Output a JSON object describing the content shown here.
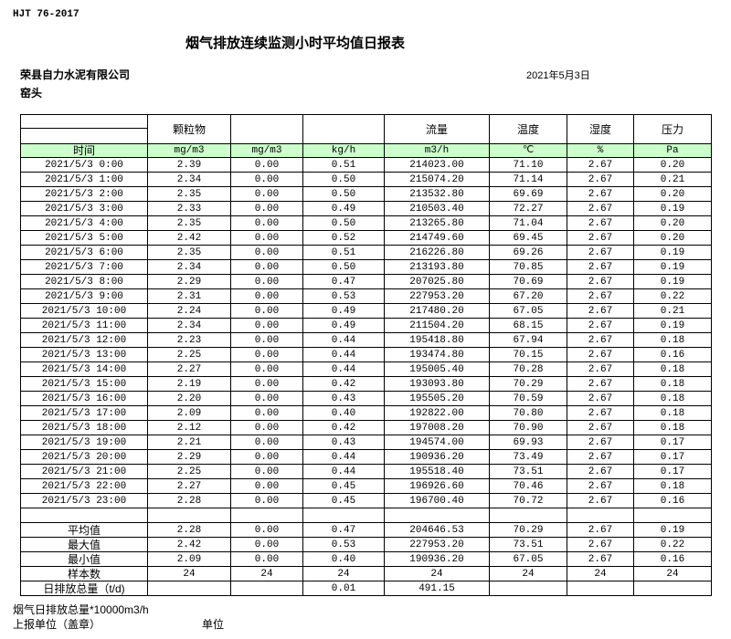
{
  "header": {
    "standard": "HJT  76-2017",
    "title": "烟气排放连续监测小时平均值日报表",
    "company": "荣县自力水泥有限公司",
    "date": "2021年5月3日",
    "unit": "窑头"
  },
  "columns": [
    "",
    "颗粒物",
    "",
    "",
    "流量",
    "温度",
    "湿度",
    "压力"
  ],
  "units": [
    "时间",
    "mg/m3",
    "mg/m3",
    "kg/h",
    "m3/h",
    "℃",
    "%",
    "Pa"
  ],
  "rows": [
    [
      "2021/5/3 0:00",
      "2.39",
      "0.00",
      "0.51",
      "214023.00",
      "71.10",
      "2.67",
      "0.20"
    ],
    [
      "2021/5/3 1:00",
      "2.34",
      "0.00",
      "0.50",
      "215074.20",
      "71.14",
      "2.67",
      "0.21"
    ],
    [
      "2021/5/3 2:00",
      "2.35",
      "0.00",
      "0.50",
      "213532.80",
      "69.69",
      "2.67",
      "0.20"
    ],
    [
      "2021/5/3 3:00",
      "2.33",
      "0.00",
      "0.49",
      "210503.40",
      "72.27",
      "2.67",
      "0.19"
    ],
    [
      "2021/5/3 4:00",
      "2.35",
      "0.00",
      "0.50",
      "213265.80",
      "71.04",
      "2.67",
      "0.20"
    ],
    [
      "2021/5/3 5:00",
      "2.42",
      "0.00",
      "0.52",
      "214749.60",
      "69.45",
      "2.67",
      "0.20"
    ],
    [
      "2021/5/3 6:00",
      "2.35",
      "0.00",
      "0.51",
      "216226.80",
      "69.26",
      "2.67",
      "0.19"
    ],
    [
      "2021/5/3 7:00",
      "2.34",
      "0.00",
      "0.50",
      "213193.80",
      "70.85",
      "2.67",
      "0.19"
    ],
    [
      "2021/5/3 8:00",
      "2.29",
      "0.00",
      "0.47",
      "207025.80",
      "70.69",
      "2.67",
      "0.19"
    ],
    [
      "2021/5/3 9:00",
      "2.31",
      "0.00",
      "0.53",
      "227953.20",
      "67.20",
      "2.67",
      "0.22"
    ],
    [
      "2021/5/3 10:00",
      "2.24",
      "0.00",
      "0.49",
      "217480.20",
      "67.05",
      "2.67",
      "0.21"
    ],
    [
      "2021/5/3 11:00",
      "2.34",
      "0.00",
      "0.49",
      "211504.20",
      "68.15",
      "2.67",
      "0.19"
    ],
    [
      "2021/5/3 12:00",
      "2.23",
      "0.00",
      "0.44",
      "195418.80",
      "67.94",
      "2.67",
      "0.18"
    ],
    [
      "2021/5/3 13:00",
      "2.25",
      "0.00",
      "0.44",
      "193474.80",
      "70.15",
      "2.67",
      "0.16"
    ],
    [
      "2021/5/3 14:00",
      "2.27",
      "0.00",
      "0.44",
      "195005.40",
      "70.28",
      "2.67",
      "0.18"
    ],
    [
      "2021/5/3 15:00",
      "2.19",
      "0.00",
      "0.42",
      "193093.80",
      "70.29",
      "2.67",
      "0.18"
    ],
    [
      "2021/5/3 16:00",
      "2.20",
      "0.00",
      "0.43",
      "195505.20",
      "70.59",
      "2.67",
      "0.18"
    ],
    [
      "2021/5/3 17:00",
      "2.09",
      "0.00",
      "0.40",
      "192822.00",
      "70.80",
      "2.67",
      "0.18"
    ],
    [
      "2021/5/3 18:00",
      "2.12",
      "0.00",
      "0.42",
      "197008.20",
      "70.90",
      "2.67",
      "0.18"
    ],
    [
      "2021/5/3 19:00",
      "2.21",
      "0.00",
      "0.43",
      "194574.00",
      "69.93",
      "2.67",
      "0.17"
    ],
    [
      "2021/5/3 20:00",
      "2.29",
      "0.00",
      "0.44",
      "190936.20",
      "73.49",
      "2.67",
      "0.17"
    ],
    [
      "2021/5/3 21:00",
      "2.25",
      "0.00",
      "0.44",
      "195518.40",
      "73.51",
      "2.67",
      "0.17"
    ],
    [
      "2021/5/3 22:00",
      "2.27",
      "0.00",
      "0.45",
      "196926.60",
      "70.46",
      "2.67",
      "0.18"
    ],
    [
      "2021/5/3 23:00",
      "2.28",
      "0.00",
      "0.45",
      "196700.40",
      "70.72",
      "2.67",
      "0.16"
    ]
  ],
  "summary": [
    [
      "平均值",
      "2.28",
      "0.00",
      "0.47",
      "204646.53",
      "70.29",
      "2.67",
      "0.19"
    ],
    [
      "最大值",
      "2.42",
      "0.00",
      "0.53",
      "227953.20",
      "73.51",
      "2.67",
      "0.22"
    ],
    [
      "最小值",
      "2.09",
      "0.00",
      "0.40",
      "190936.20",
      "67.05",
      "2.67",
      "0.16"
    ],
    [
      "样本数",
      "24",
      "24",
      "24",
      "24",
      "24",
      "24",
      "24"
    ],
    [
      "日排放总量（t/d)",
      "",
      "",
      "0.01",
      "491.15",
      "",
      "",
      ""
    ]
  ],
  "footer": {
    "note": "烟气日排放总量*10000m3/h",
    "reporter": "上报单位（盖章）",
    "unit_label": "单位"
  }
}
